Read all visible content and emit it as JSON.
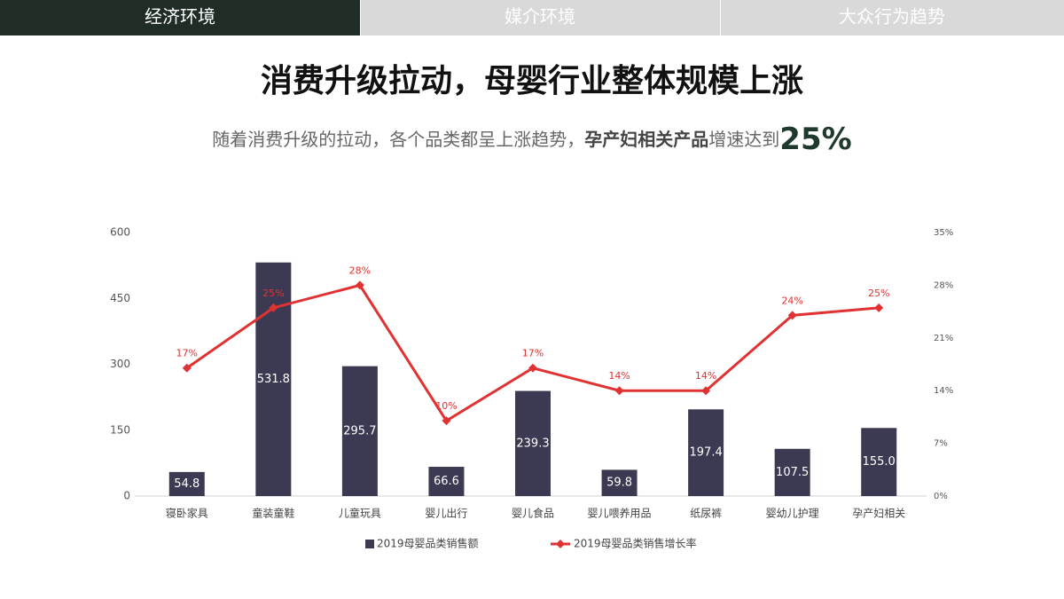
{
  "tabs": [
    "经济环境",
    "媒介环境",
    "大众行为趋势"
  ],
  "title": "消费升级拉动，母婴行业整体规模上涨",
  "subtitle": {
    "lead": "随着消费升级的拉动，各个品类都呈上涨趋势，",
    "bold": "孕产妇相关产品",
    "mid": "增速达到",
    "highlight": "25%"
  },
  "chart_data": {
    "type": "bar-line",
    "categories": [
      "寝卧家具",
      "童装童鞋",
      "儿童玩具",
      "婴儿出行",
      "婴儿食品",
      "婴儿喂养用品",
      "纸尿裤",
      "婴幼儿护理",
      "孕产妇相关"
    ],
    "series": [
      {
        "name": "2019母婴品类销售额",
        "type": "bar",
        "color": "#3c3a52",
        "values": [
          54.8,
          531.8,
          295.7,
          66.6,
          239.3,
          59.8,
          197.4,
          107.5,
          155.0
        ],
        "value_labels": [
          "54.8",
          "531.8",
          "295.7",
          "66.6",
          "239.3",
          "59.8",
          "197.4",
          "107.5",
          "155.0"
        ]
      },
      {
        "name": "2019母婴品类销售增长率",
        "type": "line",
        "axis": "y2",
        "color": "#e03232",
        "values": [
          17,
          25,
          28,
          10,
          17,
          14,
          14,
          24,
          25
        ],
        "value_labels": [
          "17%",
          "25%",
          "28%",
          "10%",
          "17%",
          "14%",
          "14%",
          "24%",
          "25%"
        ]
      }
    ],
    "ylim": [
      0,
      600
    ],
    "yticks": [
      0,
      150,
      300,
      450,
      600
    ],
    "y2lim": [
      0,
      35
    ],
    "y2ticks": [
      {
        "value": 0,
        "label": "0%"
      },
      {
        "value": 7,
        "label": "7%"
      },
      {
        "value": 14,
        "label": "14%"
      },
      {
        "value": 21,
        "label": "21%"
      },
      {
        "value": 28,
        "label": "28%"
      },
      {
        "value": 35,
        "label": "35%"
      }
    ],
    "legend": "bottom",
    "grid": false
  }
}
